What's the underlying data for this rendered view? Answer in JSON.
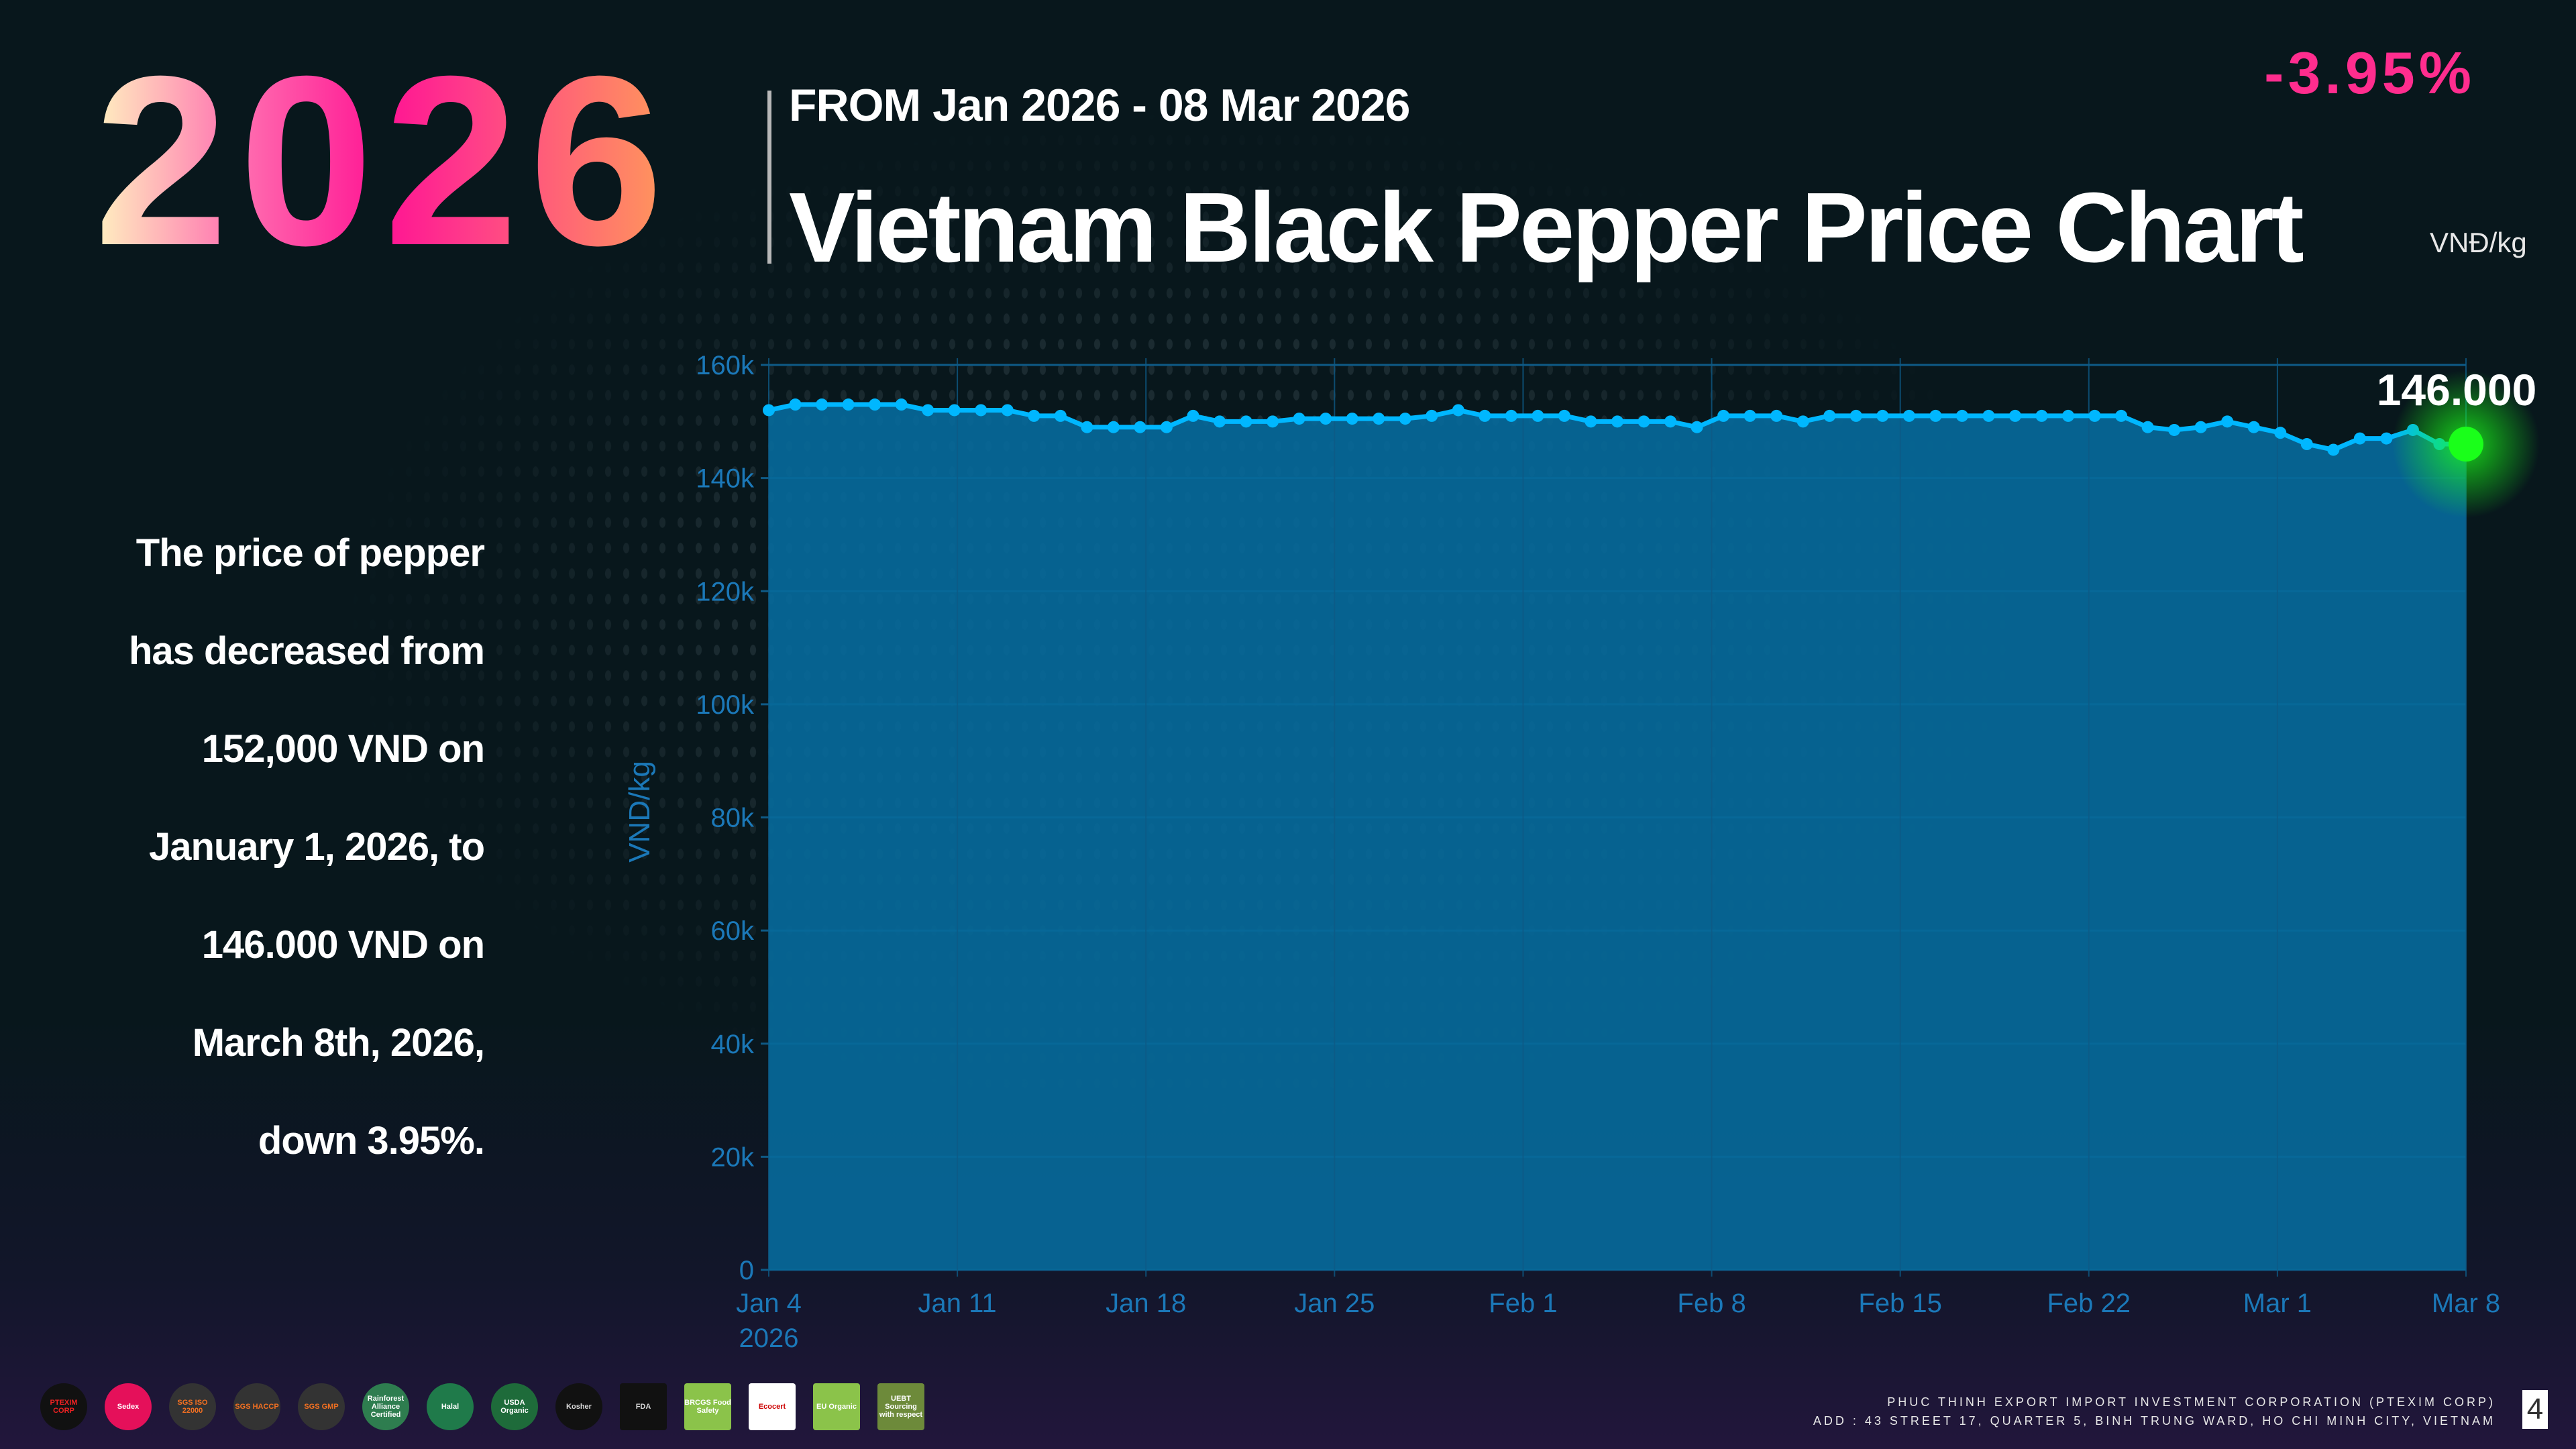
{
  "header": {
    "year": "2026",
    "range": "FROM Jan 2026  - 08  Mar  2026",
    "title": "Vietnam Black Pepper Price Chart",
    "change": "-3.95%",
    "unit": "VNĐ/kg"
  },
  "description": [
    "The price of pepper",
    "has decreased from",
    "152,000 VND on",
    "January 1, 2026, to",
    "146.000 VND on",
    "March 8th, 2026,",
    "down 3.95%."
  ],
  "colors": {
    "fill": "#07699a",
    "line": "#00b7ff",
    "grid": "#0e5a86",
    "tick": "#1b78b8",
    "last_point": "#1aff1a",
    "change": "#ff2d8e"
  },
  "chart_data": {
    "type": "area",
    "title": "Vietnam Black Pepper Price Chart",
    "xlabel": "",
    "ylabel": "VND/kg",
    "ylim": [
      0,
      160000
    ],
    "yticks": [
      "0",
      "20k",
      "40k",
      "60k",
      "80k",
      "100k",
      "120k",
      "140k",
      "160k"
    ],
    "xticks": [
      {
        "day": 0,
        "label": "Jan 4",
        "sub": "2026"
      },
      {
        "day": 7,
        "label": "Jan 11"
      },
      {
        "day": 14,
        "label": "Jan 18"
      },
      {
        "day": 21,
        "label": "Jan 25"
      },
      {
        "day": 28,
        "label": "Feb 1"
      },
      {
        "day": 35,
        "label": "Feb 8"
      },
      {
        "day": 42,
        "label": "Feb 15"
      },
      {
        "day": 49,
        "label": "Feb 22"
      },
      {
        "day": 56,
        "label": "Mar 1"
      },
      {
        "day": 63,
        "label": "Mar 8"
      }
    ],
    "x_start": "2026-01-04",
    "x_end": "2026-03-08",
    "values": [
      152000,
      153000,
      153000,
      153000,
      153000,
      153000,
      152000,
      152000,
      152000,
      152000,
      151000,
      151000,
      149000,
      149000,
      149000,
      149000,
      151000,
      150000,
      150000,
      150000,
      150500,
      150500,
      150500,
      150500,
      150500,
      151000,
      152000,
      151000,
      151000,
      151000,
      151000,
      150000,
      150000,
      150000,
      150000,
      149000,
      151000,
      151000,
      151000,
      150000,
      151000,
      151000,
      151000,
      151000,
      151000,
      151000,
      151000,
      151000,
      151000,
      151000,
      151000,
      151000,
      149000,
      148500,
      149000,
      150000,
      149000,
      148000,
      146000,
      145000,
      147000,
      147000,
      148500,
      146000,
      146000
    ],
    "last_label": "146.000"
  },
  "footer": {
    "company": "PHUC THINH EXPORT IMPORT INVESTMENT CORPORATION (PTEXIM CORP)",
    "address": "ADD : 43 STREET 17, QUARTER 5, BINH TRUNG WARD, HO CHI MINH CITY, VIETNAM",
    "page": "4",
    "logos": [
      "PTEXIM CORP",
      "Sedex",
      "SGS ISO 22000",
      "SGS HACCP",
      "SGS GMP",
      "Rainforest Alliance Certified",
      "Halal",
      "USDA Organic",
      "Kosher",
      "FDA",
      "BRCGS Food Safety",
      "Ecocert",
      "EU Organic",
      "UEBT Sourcing with respect"
    ]
  }
}
